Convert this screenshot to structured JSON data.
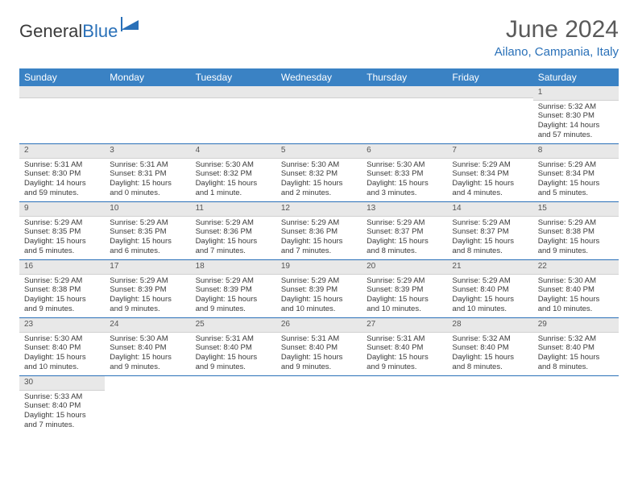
{
  "brand": {
    "part1": "General",
    "part2": "Blue"
  },
  "title": "June 2024",
  "location": "Ailano, Campania, Italy",
  "day_headers": [
    "Sunday",
    "Monday",
    "Tuesday",
    "Wednesday",
    "Thursday",
    "Friday",
    "Saturday"
  ],
  "colors": {
    "header_bg": "#3a82c4",
    "accent": "#2970b8",
    "daynum_bg": "#e8e8e8",
    "text": "#3a3a3a"
  },
  "weeks": [
    [
      null,
      null,
      null,
      null,
      null,
      null,
      {
        "n": "1",
        "sr": "Sunrise: 5:32 AM",
        "ss": "Sunset: 8:30 PM",
        "dl": "Daylight: 14 hours and 57 minutes."
      }
    ],
    [
      {
        "n": "2",
        "sr": "Sunrise: 5:31 AM",
        "ss": "Sunset: 8:30 PM",
        "dl": "Daylight: 14 hours and 59 minutes."
      },
      {
        "n": "3",
        "sr": "Sunrise: 5:31 AM",
        "ss": "Sunset: 8:31 PM",
        "dl": "Daylight: 15 hours and 0 minutes."
      },
      {
        "n": "4",
        "sr": "Sunrise: 5:30 AM",
        "ss": "Sunset: 8:32 PM",
        "dl": "Daylight: 15 hours and 1 minute."
      },
      {
        "n": "5",
        "sr": "Sunrise: 5:30 AM",
        "ss": "Sunset: 8:32 PM",
        "dl": "Daylight: 15 hours and 2 minutes."
      },
      {
        "n": "6",
        "sr": "Sunrise: 5:30 AM",
        "ss": "Sunset: 8:33 PM",
        "dl": "Daylight: 15 hours and 3 minutes."
      },
      {
        "n": "7",
        "sr": "Sunrise: 5:29 AM",
        "ss": "Sunset: 8:34 PM",
        "dl": "Daylight: 15 hours and 4 minutes."
      },
      {
        "n": "8",
        "sr": "Sunrise: 5:29 AM",
        "ss": "Sunset: 8:34 PM",
        "dl": "Daylight: 15 hours and 5 minutes."
      }
    ],
    [
      {
        "n": "9",
        "sr": "Sunrise: 5:29 AM",
        "ss": "Sunset: 8:35 PM",
        "dl": "Daylight: 15 hours and 5 minutes."
      },
      {
        "n": "10",
        "sr": "Sunrise: 5:29 AM",
        "ss": "Sunset: 8:35 PM",
        "dl": "Daylight: 15 hours and 6 minutes."
      },
      {
        "n": "11",
        "sr": "Sunrise: 5:29 AM",
        "ss": "Sunset: 8:36 PM",
        "dl": "Daylight: 15 hours and 7 minutes."
      },
      {
        "n": "12",
        "sr": "Sunrise: 5:29 AM",
        "ss": "Sunset: 8:36 PM",
        "dl": "Daylight: 15 hours and 7 minutes."
      },
      {
        "n": "13",
        "sr": "Sunrise: 5:29 AM",
        "ss": "Sunset: 8:37 PM",
        "dl": "Daylight: 15 hours and 8 minutes."
      },
      {
        "n": "14",
        "sr": "Sunrise: 5:29 AM",
        "ss": "Sunset: 8:37 PM",
        "dl": "Daylight: 15 hours and 8 minutes."
      },
      {
        "n": "15",
        "sr": "Sunrise: 5:29 AM",
        "ss": "Sunset: 8:38 PM",
        "dl": "Daylight: 15 hours and 9 minutes."
      }
    ],
    [
      {
        "n": "16",
        "sr": "Sunrise: 5:29 AM",
        "ss": "Sunset: 8:38 PM",
        "dl": "Daylight: 15 hours and 9 minutes."
      },
      {
        "n": "17",
        "sr": "Sunrise: 5:29 AM",
        "ss": "Sunset: 8:39 PM",
        "dl": "Daylight: 15 hours and 9 minutes."
      },
      {
        "n": "18",
        "sr": "Sunrise: 5:29 AM",
        "ss": "Sunset: 8:39 PM",
        "dl": "Daylight: 15 hours and 9 minutes."
      },
      {
        "n": "19",
        "sr": "Sunrise: 5:29 AM",
        "ss": "Sunset: 8:39 PM",
        "dl": "Daylight: 15 hours and 10 minutes."
      },
      {
        "n": "20",
        "sr": "Sunrise: 5:29 AM",
        "ss": "Sunset: 8:39 PM",
        "dl": "Daylight: 15 hours and 10 minutes."
      },
      {
        "n": "21",
        "sr": "Sunrise: 5:29 AM",
        "ss": "Sunset: 8:40 PM",
        "dl": "Daylight: 15 hours and 10 minutes."
      },
      {
        "n": "22",
        "sr": "Sunrise: 5:30 AM",
        "ss": "Sunset: 8:40 PM",
        "dl": "Daylight: 15 hours and 10 minutes."
      }
    ],
    [
      {
        "n": "23",
        "sr": "Sunrise: 5:30 AM",
        "ss": "Sunset: 8:40 PM",
        "dl": "Daylight: 15 hours and 10 minutes."
      },
      {
        "n": "24",
        "sr": "Sunrise: 5:30 AM",
        "ss": "Sunset: 8:40 PM",
        "dl": "Daylight: 15 hours and 9 minutes."
      },
      {
        "n": "25",
        "sr": "Sunrise: 5:31 AM",
        "ss": "Sunset: 8:40 PM",
        "dl": "Daylight: 15 hours and 9 minutes."
      },
      {
        "n": "26",
        "sr": "Sunrise: 5:31 AM",
        "ss": "Sunset: 8:40 PM",
        "dl": "Daylight: 15 hours and 9 minutes."
      },
      {
        "n": "27",
        "sr": "Sunrise: 5:31 AM",
        "ss": "Sunset: 8:40 PM",
        "dl": "Daylight: 15 hours and 9 minutes."
      },
      {
        "n": "28",
        "sr": "Sunrise: 5:32 AM",
        "ss": "Sunset: 8:40 PM",
        "dl": "Daylight: 15 hours and 8 minutes."
      },
      {
        "n": "29",
        "sr": "Sunrise: 5:32 AM",
        "ss": "Sunset: 8:40 PM",
        "dl": "Daylight: 15 hours and 8 minutes."
      }
    ],
    [
      {
        "n": "30",
        "sr": "Sunrise: 5:33 AM",
        "ss": "Sunset: 8:40 PM",
        "dl": "Daylight: 15 hours and 7 minutes."
      },
      null,
      null,
      null,
      null,
      null,
      null
    ]
  ]
}
